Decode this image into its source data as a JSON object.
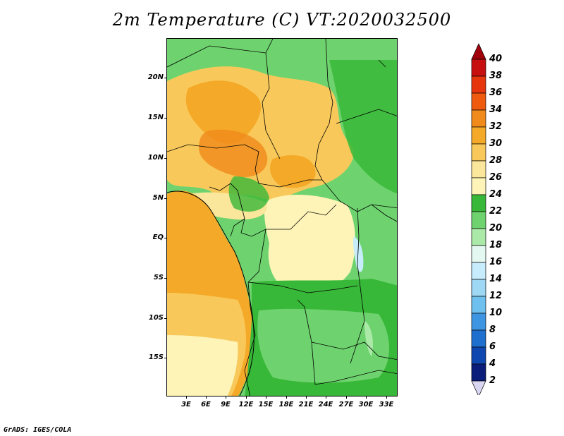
{
  "title": "2m Temperature (C) VT:2020032500",
  "map": {
    "region": "Central Africa",
    "lat_labels": [
      "20N",
      "15N",
      "10N",
      "5N",
      "EQ",
      "5S",
      "10S",
      "15S"
    ],
    "lon_labels": [
      "3E",
      "6E",
      "9E",
      "12E",
      "15E",
      "18E",
      "21E",
      "24E",
      "27E",
      "30E",
      "33E"
    ]
  },
  "colorbar": {
    "unit": "C",
    "labels": [
      "40",
      "38",
      "36",
      "34",
      "32",
      "30",
      "28",
      "26",
      "24",
      "22",
      "20",
      "18",
      "16",
      "14",
      "12",
      "10",
      "8",
      "6",
      "4",
      "2"
    ],
    "colors": [
      "#a0000b",
      "#c80f0f",
      "#e7350d",
      "#f05a0f",
      "#f08a1a",
      "#f5a928",
      "#f8c95a",
      "#fbe79c",
      "#fef4b8",
      "#38b838",
      "#6ed36e",
      "#abe9a8",
      "#e4f8f2",
      "#c7ecfb",
      "#9fd8f5",
      "#6ec0ee",
      "#3e96e3",
      "#1f6fcf",
      "#0e47b0",
      "#0a1d7a",
      "#d8d6f0"
    ]
  },
  "credit": "GrADS: IGES/COLA"
}
